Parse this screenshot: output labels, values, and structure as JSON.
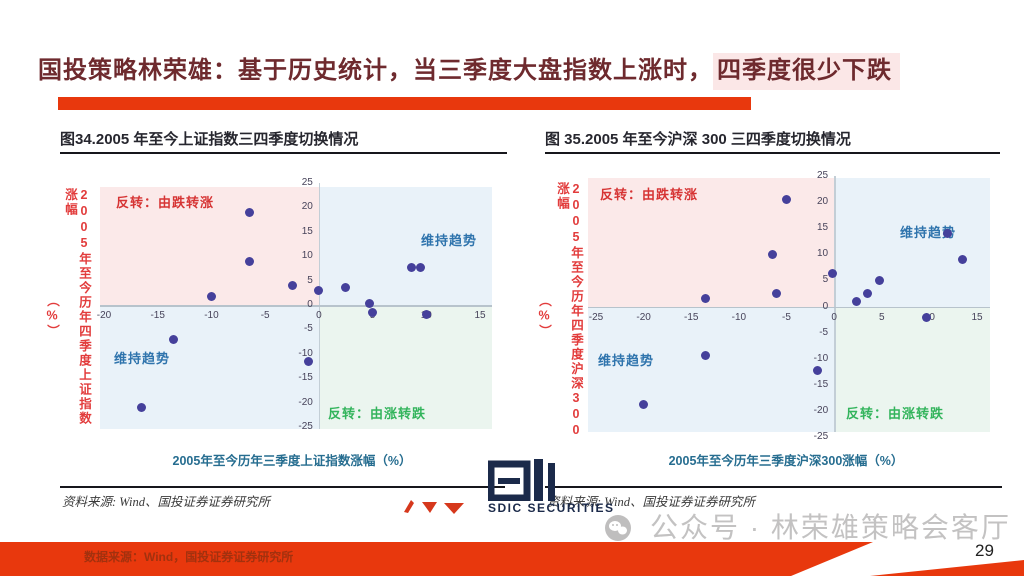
{
  "slide": {
    "title": {
      "main": "国投策略林荣雄：基于历史统计，当三季度大盘指数上涨时，",
      "highlight": "四季度很少下跌"
    },
    "page_number": "29",
    "footer": {
      "data_source": "数据来源：Wind，国投证券证券研究所"
    },
    "watermark": {
      "wechat_label": "公众号 · 林荣雄策略会客厅"
    },
    "logo": {
      "text": "SDIC SECURITIES"
    }
  },
  "colors": {
    "accent_red": "#e8380d",
    "title_text": "#6e2a2e",
    "title_highlight_bg": "#fbe7e7",
    "quadrant_pink": "#fbe9e9",
    "quadrant_blue": "#e9f2f9",
    "quadrant_green": "#ebf5ef",
    "dot": "#45409b",
    "label_red": "#d63434",
    "label_blue": "#2f74ad",
    "label_green": "#33b45c",
    "axis_caption": "#266d90",
    "tick_text": "#47435a",
    "watermark_gray": "#c3c2c2",
    "logo_navy": "#1b2a4a"
  },
  "chart_data": [
    {
      "type": "scatter",
      "title": "图34.2005 年至今上证指数三四季度切换情况",
      "xlabel": "2005年至今历年三季度上证指数涨幅（%）",
      "ylabel": "2005年至今历年四季度上证指数涨幅",
      "ylabel_unit": "（%）",
      "xlim": [
        -20,
        15
      ],
      "ylim": [
        -25,
        25
      ],
      "xticks": [
        -20,
        -15,
        -10,
        -5,
        0,
        5,
        10,
        15
      ],
      "yticks": [
        25,
        20,
        15,
        10,
        5,
        0,
        -5,
        -10,
        -15,
        -20,
        -25
      ],
      "points": [
        [
          -6.5,
          19
        ],
        [
          -6.5,
          9
        ],
        [
          -10,
          1.8
        ],
        [
          -2.5,
          4
        ],
        [
          0,
          3
        ],
        [
          2.5,
          3.5
        ],
        [
          4.7,
          0.3
        ],
        [
          5,
          -1.5
        ],
        [
          8.6,
          7.7
        ],
        [
          9.5,
          7.6
        ],
        [
          10,
          -2
        ],
        [
          -13.5,
          -7
        ],
        [
          -1,
          -11.5
        ],
        [
          -16.5,
          -21
        ]
      ],
      "quadrant_labels": {
        "top_left": "反转：由跌转涨",
        "top_right": "维持趋势",
        "bottom_left": "维持趋势",
        "bottom_right": "反转：由涨转跌"
      },
      "grid": false,
      "legend": "none",
      "source": "资料来源: Wind、国投证券证券研究所"
    },
    {
      "type": "scatter",
      "title": "图 35.2005 年至今沪深 300 三四季度切换情况",
      "xlabel": "2005年至今历年三季度沪深300涨幅（%）",
      "ylabel": "2005年至今历年四季度沪深300涨幅",
      "ylabel_unit": "（%）",
      "xlim": [
        -25,
        15
      ],
      "ylim": [
        -25,
        25
      ],
      "xticks": [
        -25,
        -20,
        -15,
        -10,
        -5,
        0,
        5,
        10,
        15
      ],
      "yticks": [
        25,
        20,
        15,
        10,
        5,
        0,
        -5,
        -10,
        -15,
        -20,
        -25
      ],
      "points": [
        [
          -5,
          20.5
        ],
        [
          -6.5,
          10
        ],
        [
          -6,
          2.5
        ],
        [
          -13.5,
          1.5
        ],
        [
          -0.2,
          6.3
        ],
        [
          2.3,
          1
        ],
        [
          3.5,
          2.5
        ],
        [
          4.8,
          5
        ],
        [
          11.9,
          13.9
        ],
        [
          13.5,
          9
        ],
        [
          9.7,
          -2.2
        ],
        [
          -13.5,
          -9.3
        ],
        [
          -1.7,
          -12.3
        ],
        [
          -20,
          -18.7
        ]
      ],
      "quadrant_labels": {
        "top_left": "反转：由跌转涨",
        "top_right": "维持趋势",
        "bottom_left": "维持趋势",
        "bottom_right": "反转：由涨转跌"
      },
      "grid": false,
      "legend": "none",
      "source": "资料来源: Wind、国投证券证券研究所"
    }
  ]
}
